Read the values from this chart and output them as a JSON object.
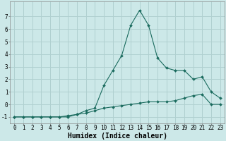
{
  "xlabel": "Humidex (Indice chaleur)",
  "x": [
    0,
    1,
    2,
    3,
    4,
    5,
    6,
    7,
    8,
    9,
    10,
    11,
    12,
    13,
    14,
    15,
    16,
    17,
    18,
    19,
    20,
    21,
    22,
    23
  ],
  "line1_y": [
    -1,
    -1,
    -1,
    -1,
    -1,
    -1,
    -1,
    -0.8,
    -0.7,
    -0.5,
    -0.3,
    -0.2,
    -0.1,
    0.0,
    0.1,
    0.2,
    0.2,
    0.2,
    0.3,
    0.5,
    0.7,
    0.8,
    0.0,
    0.0
  ],
  "line2_y": [
    -1,
    -1,
    -1,
    -1,
    -1,
    -1,
    -0.9,
    -0.8,
    -0.5,
    -0.3,
    1.5,
    2.7,
    3.9,
    6.3,
    7.5,
    6.3,
    3.7,
    2.9,
    2.7,
    2.7,
    2.0,
    2.2,
    1.0,
    0.5
  ],
  "line_color": "#1a6b5e",
  "bg_color": "#cce8e8",
  "grid_color": "#b0d0d0",
  "ylim": [
    -1.5,
    8.2
  ],
  "xlim": [
    -0.5,
    23.5
  ],
  "yticks": [
    -1,
    0,
    1,
    2,
    3,
    4,
    5,
    6,
    7
  ],
  "xticks": [
    0,
    1,
    2,
    3,
    4,
    5,
    6,
    7,
    8,
    9,
    10,
    11,
    12,
    13,
    14,
    15,
    16,
    17,
    18,
    19,
    20,
    21,
    22,
    23
  ],
  "tick_fontsize": 5.5,
  "xlabel_fontsize": 7.0,
  "marker": "D",
  "marker_size": 2.0,
  "line_width": 0.8
}
